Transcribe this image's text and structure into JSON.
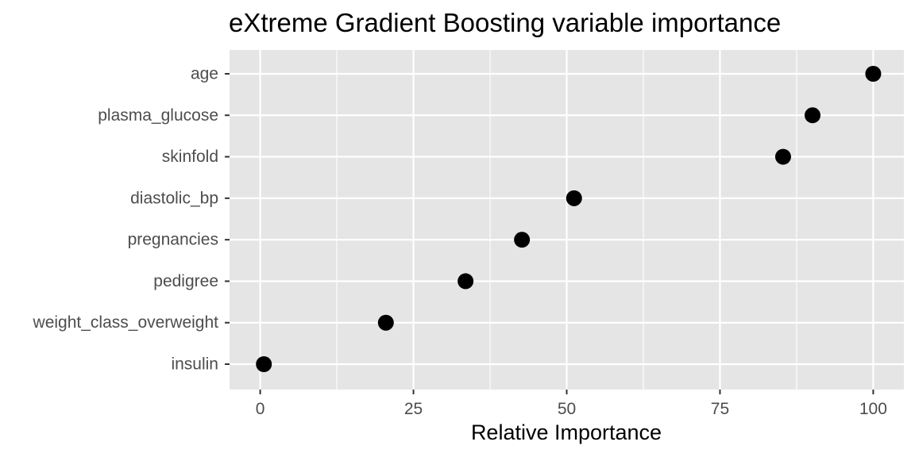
{
  "chart_data": {
    "type": "scatter",
    "title": "eXtreme Gradient Boosting variable importance",
    "xlabel": "Relative Importance",
    "ylabel": "",
    "xlim": [
      -5,
      105
    ],
    "xticks": [
      0,
      25,
      50,
      75,
      100
    ],
    "grid": true,
    "legend": "none",
    "categories": [
      "age",
      "plasma_glucose",
      "skinfold",
      "diastolic_bp",
      "pregnancies",
      "pedigree",
      "weight_class_overweight",
      "insulin"
    ],
    "values": [
      100,
      90.1,
      85.3,
      51.2,
      42.7,
      33.5,
      20.5,
      0.6
    ]
  },
  "colors": {
    "panel_background": "#e5e5e5",
    "grid_line": "#ffffff",
    "point": "#000000",
    "tick_text": "#4d4d4d",
    "tick_mark": "#333333"
  }
}
